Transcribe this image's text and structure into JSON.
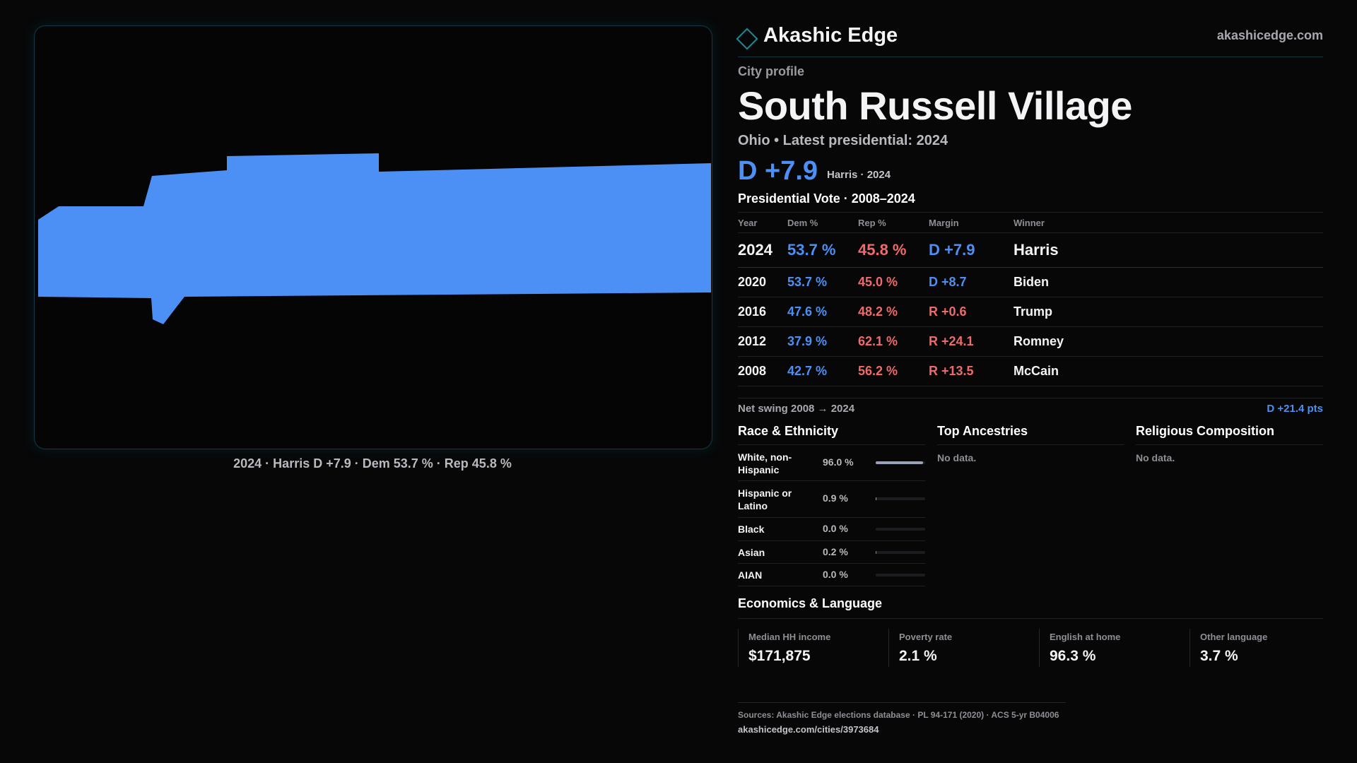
{
  "map": {
    "fill_color": "#4d90f5",
    "caption": "2024 · Harris D +7.9 · Dem 53.7 % · Rep 45.8 %"
  },
  "brand": {
    "name": "Akashic Edge",
    "url": "akashicedge.com",
    "logo_icon": "diamond-icon"
  },
  "profile": {
    "kicker": "City profile",
    "title": "South Russell Village",
    "subtitle": "Ohio • Latest presidential: 2024",
    "margin": "D +7.9",
    "margin_note": "Harris · 2024"
  },
  "votes": {
    "heading": "Presidential Vote · 2008–2024",
    "columns": {
      "year": "Year",
      "dem": "Dem %",
      "rep": "Rep %",
      "margin": "Margin",
      "winner": "Winner"
    },
    "rows": [
      {
        "year": "2024",
        "dem": "53.7 %",
        "rep": "45.8 %",
        "margin": "D +7.9",
        "winner": "Harris"
      },
      {
        "year": "2020",
        "dem": "53.7 %",
        "rep": "45.0 %",
        "margin": "D +8.7",
        "winner": "Biden"
      },
      {
        "year": "2016",
        "dem": "47.6 %",
        "rep": "48.2 %",
        "margin": "R +0.6",
        "winner": "Trump"
      },
      {
        "year": "2012",
        "dem": "37.9 %",
        "rep": "62.1 %",
        "margin": "R +24.1",
        "winner": "Romney"
      },
      {
        "year": "2008",
        "dem": "42.7 %",
        "rep": "56.2 %",
        "margin": "R +13.5",
        "winner": "McCain"
      }
    ],
    "swing_label": "Net swing 2008 → 2024",
    "swing_value": "D +21.4 pts"
  },
  "race": {
    "heading": "Race & Ethnicity",
    "items": [
      {
        "label": "White, non-Hispanic",
        "pct": "96.0 %",
        "value": 0.96,
        "color": "#9aa3b5"
      },
      {
        "label": "Hispanic or Latino",
        "pct": "0.9 %",
        "value": 0.009,
        "color": "#e0a040"
      },
      {
        "label": "Black",
        "pct": "0.0 %",
        "value": 0.0,
        "color": "#888888"
      },
      {
        "label": "Asian",
        "pct": "0.2 %",
        "value": 0.002,
        "color": "#888888"
      },
      {
        "label": "AIAN",
        "pct": "0.0 %",
        "value": 0.0,
        "color": "#888888"
      }
    ]
  },
  "ancestries": {
    "heading": "Top Ancestries",
    "empty": "No data."
  },
  "religion": {
    "heading": "Religious Composition",
    "empty": "No data."
  },
  "economics": {
    "heading": "Economics & Language",
    "cards": [
      {
        "label": "Median HH income",
        "value": "$171,875"
      },
      {
        "label": "Poverty rate",
        "value": "2.1 %"
      },
      {
        "label": "English at home",
        "value": "96.3 %"
      },
      {
        "label": "Other language",
        "value": "3.7 %"
      }
    ]
  },
  "footer": {
    "sources": "Sources: Akashic Edge elections database · PL 94-171 (2020) · ACS 5-yr B04006",
    "url": "akashicedge.com/cities/3973684"
  }
}
